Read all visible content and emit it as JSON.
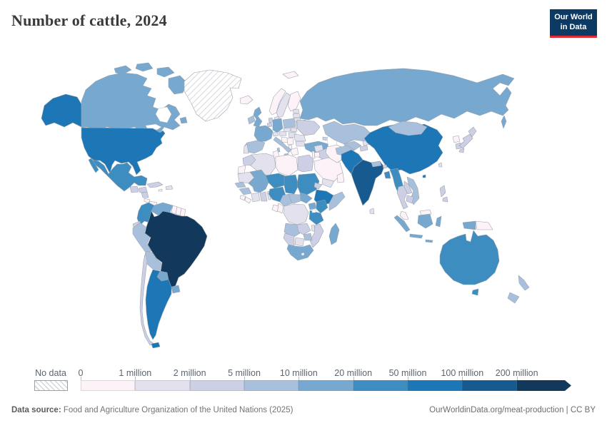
{
  "header": {
    "title": "Number of cattle, 2024"
  },
  "logo": {
    "line1": "Our World",
    "line2": "in Data",
    "bg_color": "#0d3a63",
    "accent_color": "#e02b35"
  },
  "legend": {
    "no_data_label": "No data"
  },
  "footer": {
    "source_label": "Data source:",
    "source_text": " Food and Agriculture Organization of the United Nations (2025)",
    "link_text": "OurWorldinData.org/meat-production | CC BY"
  },
  "chart_data": {
    "type": "choropleth-map",
    "title": "Number of cattle, 2024",
    "unit": "cattle",
    "legend_position": "bottom",
    "bins": [
      {
        "label": "0",
        "range": "0-1 million",
        "color": "#fdf2f7"
      },
      {
        "label": "1 million",
        "range": "1-2 million",
        "color": "#e4e1ee"
      },
      {
        "label": "2 million",
        "range": "2-5 million",
        "color": "#cdcfe5"
      },
      {
        "label": "5 million",
        "range": "5-10 million",
        "color": "#a9c0dc"
      },
      {
        "label": "10 million",
        "range": "10-20 million",
        "color": "#76a8d0"
      },
      {
        "label": "20 million",
        "range": "20-50 million",
        "color": "#3d8dc0"
      },
      {
        "label": "50 million",
        "range": "50-100 million",
        "color": "#1d76b5"
      },
      {
        "label": "100 million",
        "range": "100-200 million",
        "color": "#175a8f"
      },
      {
        "label": "200 million",
        "range": "200+ million",
        "color": "#12395c"
      }
    ],
    "no_data_entities": [
      "Greenland"
    ],
    "entities": {
      "Brazil": 8,
      "India": 7,
      "United States": 6,
      "China": 6,
      "Ethiopia": 6,
      "Pakistan": 6,
      "Argentina": 6,
      "Mexico": 5,
      "Colombia": 5,
      "Sudan": 5,
      "Chad": 5,
      "Niger": 5,
      "Nigeria": 5,
      "Tanzania": 5,
      "Kenya": 5,
      "Australia": 5,
      "Bangladesh": 5,
      "Myanmar": 5,
      "Canada": 4,
      "Russia": 4,
      "France": 4,
      "Germany": 4,
      "United Kingdom": 4,
      "Venezuela": 4,
      "Paraguay": 4,
      "Uruguay": 4,
      "South Africa": 4,
      "Madagascar": 4,
      "Mali": 4,
      "Burkina Faso": 4,
      "South Sudan": 4,
      "Uganda": 4,
      "Indonesia": 4,
      "Turkey": 4,
      "Spain": 3,
      "Italy": 3,
      "Poland": 3,
      "Ireland": 3,
      "Kazakhstan": 3,
      "Mongolia": 3,
      "Afghanistan": 3,
      "Uzbekistan": 3,
      "Nepal": 3,
      "Vietnam": 3,
      "New Zealand": 3,
      "Peru": 3,
      "Bolivia": 3,
      "Senegal": 3,
      "Guinea": 3,
      "Cameroon": 3,
      "Central African Republic": 3,
      "Somalia": 3,
      "Angola": 3,
      "Zimbabwe": 3,
      "Ukraine": 2,
      "Belarus": 2,
      "Netherlands": 2,
      "Belgium": 2,
      "Morocco": 2,
      "Egypt": 2,
      "Ghana": 2,
      "Eritrea": 2,
      "Zambia": 2,
      "Mozambique": 2,
      "Namibia": 2,
      "Ecuador": 2,
      "Chile": 2,
      "Cuba": 2,
      "Guatemala": 2,
      "Honduras": 2,
      "Nicaragua": 2,
      "Japan": 2,
      "South Korea": 2,
      "Philippines": 2,
      "Thailand": 2,
      "Cambodia": 2,
      "Laos": 2,
      "Iraq": 2,
      "Turkmenistan": 2,
      "Tajikistan": 2,
      "Georgia": 2,
      "Azerbaijan": 2,
      "Bhutan": 2,
      "Sweden": 1,
      "Denmark": 1,
      "Portugal": 1,
      "Austria": 1,
      "Switzerland": 1,
      "Czechia": 1,
      "Slovakia": 1,
      "Hungary": 1,
      "Romania": 1,
      "Bulgaria": 1,
      "Algeria": 1,
      "Mauritania": 1,
      "Ivory Coast": 1,
      "Togo": 1,
      "Benin": 1,
      "Botswana": 1,
      "DR Congo": 1,
      "Yemen": 1,
      "Syria": 1,
      "Kyrgyzstan": 1,
      "Sri Lanka": 1,
      "Taiwan": 1,
      "Dominican Republic": 1,
      "Estonia": 1,
      "Latvia": 1,
      "Lithuania": 1,
      "Malawi": 1,
      "Norway": 0,
      "Finland": 0,
      "Iceland": 0,
      "Greece": 0,
      "Albania": 0,
      "Serbia": 0,
      "Croatia": 0,
      "Libya": 0,
      "Tunisia": 0,
      "Saudi Arabia": 0,
      "Oman": 0,
      "Jordan": 0,
      "Israel": 0,
      "Iran": 0,
      "Malaysia": 0,
      "North Korea": 0,
      "Papua New Guinea": 0,
      "Guyana": 0,
      "Suriname": 0,
      "French Guiana": 0,
      "Gabon": 0,
      "Congo": 0,
      "Costa Rica": 0,
      "Panama": 0,
      "Western Sahara": 0,
      "Svalbard": 0,
      "Sierra Leone": 0,
      "Liberia": 0,
      "Jamaica": 0,
      "Lesotho": 0
    }
  }
}
